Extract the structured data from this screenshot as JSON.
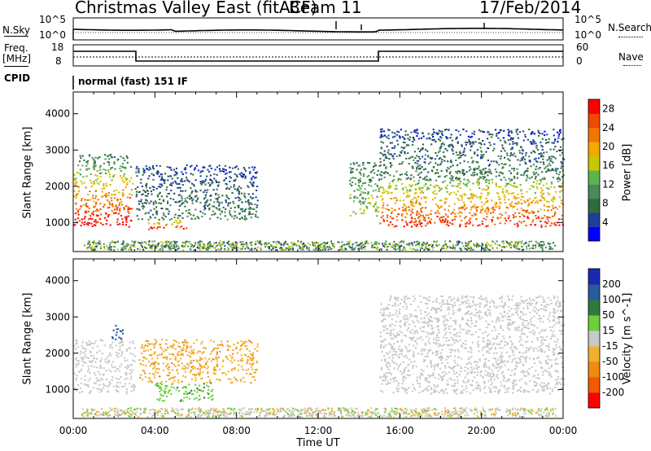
{
  "header": {
    "station_title": "Christmas Valley East (fitACF)",
    "beam_label": "Beam 11",
    "date": "17/Feb/2014"
  },
  "noise_panel": {
    "left_label": "N.Sky",
    "right_label": "N.Search",
    "ticks": [
      "10^5",
      "10^0"
    ]
  },
  "freq_panel": {
    "left_label_line1": "Freq.",
    "left_label_line2": "[MHz]",
    "right_label": "Nave",
    "left_ticks": [
      "18",
      "8"
    ],
    "right_ticks": [
      "60",
      "0"
    ]
  },
  "cpid": {
    "label": "CPID",
    "program": "normal (fast) 151 IF"
  },
  "colors": {
    "power_scale": [
      "#0000ff",
      "#1e3f9a",
      "#2e6b3f",
      "#4a8a5a",
      "#5db34f",
      "#c8c800",
      "#f2a900",
      "#f07800",
      "#f04a00",
      "#ff0000"
    ],
    "velocity_scale": [
      "#1a2ab0",
      "#2a5aa0",
      "#2e7a3c",
      "#6ccf3c",
      "#c8c8c8",
      "#f2b030",
      "#f08a10",
      "#f05a00",
      "#ff0000"
    ]
  },
  "chart_data": [
    {
      "type": "heatmap",
      "quantity": "Power",
      "xlabel": "Time UT",
      "ylabel": "Slant Range [km]",
      "x_ticks": [
        "00:00",
        "04:00",
        "08:00",
        "12:00",
        "16:00",
        "20:00",
        "00:00"
      ],
      "y_ticks": [
        1000,
        2000,
        3000,
        4000
      ],
      "ylim": [
        200,
        4600
      ],
      "colorbar_label": "Power [dB]",
      "colorbar_ticks": [
        4,
        8,
        12,
        16,
        20,
        24,
        28
      ],
      "colorbar_range": [
        0,
        30
      ],
      "regions": [
        {
          "t_start": 0.0,
          "t_end": 2.9,
          "range_start": 900,
          "range_end": 2400,
          "power": 26
        },
        {
          "t_start": 0.2,
          "t_end": 2.8,
          "range_start": 2400,
          "range_end": 2900,
          "power": 12
        },
        {
          "t_start": 3.0,
          "t_end": 9.0,
          "range_start": 1100,
          "range_end": 2600,
          "power": 8
        },
        {
          "t_start": 3.5,
          "t_end": 5.5,
          "range_start": 800,
          "range_end": 1100,
          "power": 26
        },
        {
          "t_start": 13.5,
          "t_end": 15.0,
          "range_start": 1200,
          "range_end": 2700,
          "power": 14
        },
        {
          "t_start": 15.0,
          "t_end": 24.0,
          "range_start": 900,
          "range_end": 2200,
          "power": 24
        },
        {
          "t_start": 15.0,
          "t_end": 24.0,
          "range_start": 2200,
          "range_end": 3600,
          "power": 8
        }
      ]
    },
    {
      "type": "heatmap",
      "quantity": "Velocity",
      "xlabel": "Time UT",
      "ylabel": "Slant Range [km]",
      "x_ticks": [
        "00:00",
        "04:00",
        "08:00",
        "12:00",
        "16:00",
        "20:00",
        "00:00"
      ],
      "y_ticks": [
        1000,
        2000,
        3000,
        4000
      ],
      "ylim": [
        200,
        4600
      ],
      "colorbar_label": "Velocity [m s^-1]",
      "colorbar_ticks": [
        "200",
        "100",
        "50",
        "15",
        "-15",
        "-50",
        "-100",
        "-200"
      ],
      "regions": [
        {
          "t_start": 0.0,
          "t_end": 3.0,
          "range_start": 900,
          "range_end": 2400,
          "velocity": 0
        },
        {
          "t_start": 1.8,
          "t_end": 2.4,
          "range_start": 2400,
          "range_end": 2800,
          "velocity": 150
        },
        {
          "t_start": 4.0,
          "t_end": 6.8,
          "range_start": 700,
          "range_end": 1200,
          "velocity": 40
        },
        {
          "t_start": 3.2,
          "t_end": 9.0,
          "range_start": 1200,
          "range_end": 2400,
          "velocity": -40
        },
        {
          "t_start": 15.0,
          "t_end": 24.0,
          "range_start": 900,
          "range_end": 2200,
          "velocity": 0
        },
        {
          "t_start": 15.0,
          "t_end": 24.0,
          "range_start": 2200,
          "range_end": 3600,
          "velocity": 0
        }
      ]
    }
  ]
}
